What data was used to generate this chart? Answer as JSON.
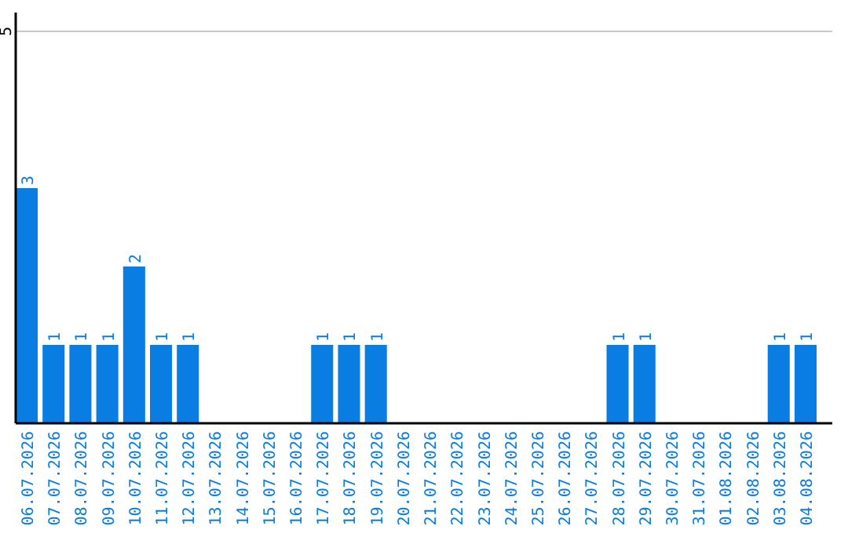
{
  "chart_data": {
    "type": "bar",
    "categories": [
      "06.07.2026",
      "07.07.2026",
      "08.07.2026",
      "09.07.2026",
      "10.07.2026",
      "11.07.2026",
      "12.07.2026",
      "13.07.2026",
      "14.07.2026",
      "15.07.2026",
      "16.07.2026",
      "17.07.2026",
      "18.07.2026",
      "19.07.2026",
      "20.07.2026",
      "21.07.2026",
      "22.07.2026",
      "23.07.2026",
      "24.07.2026",
      "25.07.2026",
      "26.07.2026",
      "27.07.2026",
      "28.07.2026",
      "29.07.2026",
      "30.07.2026",
      "31.07.2026",
      "01.08.2026",
      "02.08.2026",
      "03.08.2026",
      "04.08.2026"
    ],
    "values": [
      3,
      1,
      1,
      1,
      2,
      1,
      1,
      0,
      0,
      0,
      0,
      1,
      1,
      1,
      0,
      0,
      0,
      0,
      0,
      0,
      0,
      0,
      1,
      1,
      0,
      0,
      0,
      0,
      1,
      1
    ],
    "value_labels": [
      "3",
      "1",
      "1",
      "1",
      "2",
      "1",
      "1",
      null,
      null,
      null,
      null,
      "1",
      "1",
      "1",
      null,
      null,
      null,
      null,
      null,
      null,
      null,
      null,
      "1",
      "1",
      null,
      null,
      null,
      null,
      "1",
      "1"
    ],
    "color": "#0a7de3",
    "ylim": [
      0,
      5
    ],
    "yticks": [
      5
    ],
    "ref_lines": [
      {
        "axis": "y",
        "value": 5,
        "color": "#c8c8c8"
      }
    ]
  }
}
